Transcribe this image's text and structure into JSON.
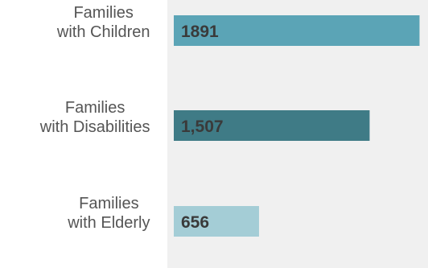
{
  "chart_data": {
    "type": "bar",
    "orientation": "horizontal",
    "categories": [
      [
        "Families",
        "with Children"
      ],
      [
        "Families",
        "with Disabilities"
      ],
      [
        "Families",
        "with Elderly"
      ]
    ],
    "values": [
      1891,
      1507,
      656
    ],
    "value_labels": [
      "1891",
      "1,507",
      "656"
    ],
    "colors": [
      "#5ba4b6",
      "#3f7b86",
      "#a4cdd6"
    ],
    "plot_background": "#f0f0f0",
    "xlim": [
      0,
      1950
    ],
    "grid": false,
    "legend": false
  }
}
